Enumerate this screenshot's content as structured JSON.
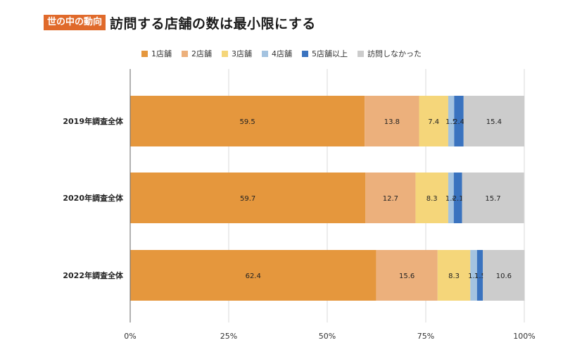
{
  "header": {
    "tag": "世の中の動向",
    "title": "訪問する店舗の数は最小限にする"
  },
  "chart_data": {
    "type": "bar",
    "orientation": "horizontal",
    "stacked": true,
    "categories": [
      "2019年調査全体",
      "2020年調査全体",
      "2022年調査全体"
    ],
    "series": [
      {
        "name": "1店舗",
        "color": "#e5973d",
        "values": [
          59.5,
          59.7,
          62.4
        ]
      },
      {
        "name": "2店舗",
        "color": "#ecb07c",
        "values": [
          13.8,
          12.7,
          15.6
        ]
      },
      {
        "name": "3店舗",
        "color": "#f5d67a",
        "values": [
          7.4,
          8.3,
          8.3
        ]
      },
      {
        "name": "4店舗",
        "color": "#a4c3e0",
        "values": [
          1.5,
          1.4,
          1.7
        ]
      },
      {
        "name": "5店舗以上",
        "color": "#3a73bf",
        "values": [
          2.4,
          2.1,
          1.5
        ]
      },
      {
        "name": "訪問しなかった",
        "color": "#cccccc",
        "values": [
          15.4,
          15.7,
          10.6
        ]
      }
    ],
    "x_ticks": [
      "0%",
      "25%",
      "50%",
      "75%",
      "100%"
    ],
    "xlim": [
      0,
      100
    ],
    "grid": true,
    "legend": "top"
  }
}
